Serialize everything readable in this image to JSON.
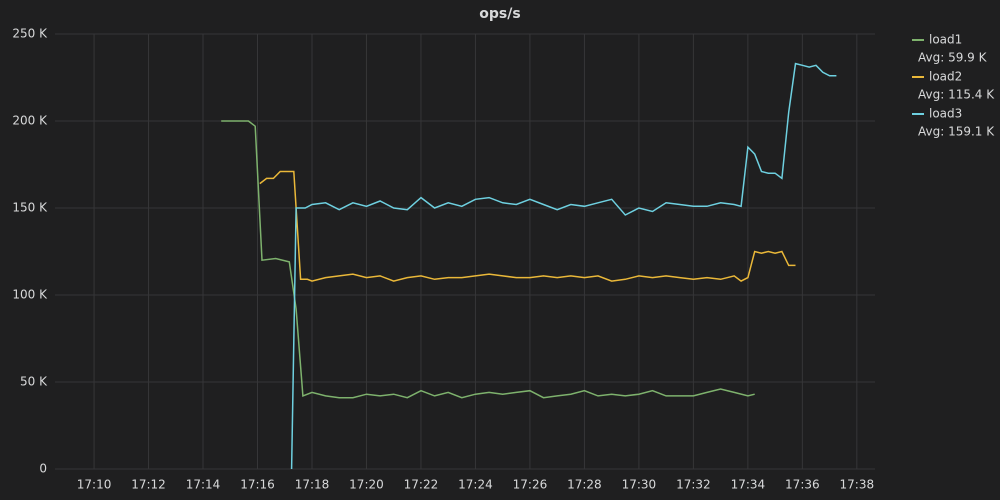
{
  "chart_data": {
    "type": "line",
    "title": "ops/s",
    "xlim": [
      "17:08:34",
      "17:38:40"
    ],
    "xticks": [
      "17:10",
      "17:12",
      "17:14",
      "17:16",
      "17:18",
      "17:20",
      "17:22",
      "17:24",
      "17:26",
      "17:28",
      "17:30",
      "17:32",
      "17:34",
      "17:36",
      "17:38"
    ],
    "ylim": [
      0,
      250000
    ],
    "yticks": [
      0,
      {
        "value": 50000,
        "label": "50 K"
      },
      {
        "value": 100000,
        "label": "100 K"
      },
      {
        "value": 150000,
        "label": "150 K"
      },
      {
        "value": 200000,
        "label": "200 K"
      },
      {
        "value": 250000,
        "label": "250 K"
      }
    ],
    "grid": true,
    "legend": "right",
    "series": [
      {
        "name": "load1",
        "color": "#7eb26d",
        "avg_label": "Avg: 59.9 K",
        "x": [
          "17:14:40",
          "17:15:10",
          "17:15:40",
          "17:15:55",
          "17:16:10",
          "17:16:40",
          "17:17:10",
          "17:17:25",
          "17:17:40",
          "17:18:00",
          "17:18:30",
          "17:19:00",
          "17:19:30",
          "17:20:00",
          "17:20:30",
          "17:21:00",
          "17:21:30",
          "17:22:00",
          "17:22:30",
          "17:23:00",
          "17:23:30",
          "17:24:00",
          "17:24:30",
          "17:25:00",
          "17:25:30",
          "17:26:00",
          "17:26:30",
          "17:27:00",
          "17:27:30",
          "17:28:00",
          "17:28:30",
          "17:29:00",
          "17:29:30",
          "17:30:00",
          "17:30:30",
          "17:31:00",
          "17:31:30",
          "17:32:00",
          "17:32:30",
          "17:33:00",
          "17:33:30",
          "17:34:00",
          "17:34:15"
        ],
        "values": [
          200000,
          200000,
          200000,
          197000,
          120000,
          121000,
          119000,
          92000,
          42000,
          44000,
          42000,
          41000,
          41000,
          43000,
          42000,
          43000,
          41000,
          45000,
          42000,
          44000,
          41000,
          43000,
          44000,
          43000,
          44000,
          45000,
          41000,
          42000,
          43000,
          45000,
          42000,
          43000,
          42000,
          43000,
          45000,
          42000,
          42000,
          42000,
          44000,
          46000,
          44000,
          42000,
          43000
        ]
      },
      {
        "name": "load2",
        "color": "#eab839",
        "avg_label": "Avg: 115.4 K",
        "x": [
          "17:16:05",
          "17:16:20",
          "17:16:35",
          "17:16:50",
          "17:17:20",
          "17:17:35",
          "17:17:50",
          "17:18:00",
          "17:18:30",
          "17:19:00",
          "17:19:30",
          "17:20:00",
          "17:20:30",
          "17:21:00",
          "17:21:30",
          "17:22:00",
          "17:22:30",
          "17:23:00",
          "17:23:30",
          "17:24:00",
          "17:24:30",
          "17:25:00",
          "17:25:30",
          "17:26:00",
          "17:26:30",
          "17:27:00",
          "17:27:30",
          "17:28:00",
          "17:28:30",
          "17:29:00",
          "17:29:30",
          "17:30:00",
          "17:30:30",
          "17:31:00",
          "17:31:30",
          "17:32:00",
          "17:32:30",
          "17:33:00",
          "17:33:30",
          "17:33:45",
          "17:34:00",
          "17:34:15",
          "17:34:30",
          "17:34:45",
          "17:35:00",
          "17:35:15",
          "17:35:30",
          "17:35:45"
        ],
        "values": [
          164000,
          167000,
          167000,
          171000,
          171000,
          109000,
          109000,
          108000,
          110000,
          111000,
          112000,
          110000,
          111000,
          108000,
          110000,
          111000,
          109000,
          110000,
          110000,
          111000,
          112000,
          111000,
          110000,
          110000,
          111000,
          110000,
          111000,
          110000,
          111000,
          108000,
          109000,
          111000,
          110000,
          111000,
          110000,
          109000,
          110000,
          109000,
          111000,
          108000,
          110000,
          125000,
          124000,
          125000,
          124000,
          125000,
          117000,
          117000
        ]
      },
      {
        "name": "load3",
        "color": "#6ed0e0",
        "avg_label": "Avg: 159.1 K",
        "x": [
          "17:17:15",
          "17:17:25",
          "17:17:45",
          "17:18:00",
          "17:18:30",
          "17:19:00",
          "17:19:30",
          "17:20:00",
          "17:20:30",
          "17:21:00",
          "17:21:30",
          "17:22:00",
          "17:22:30",
          "17:23:00",
          "17:23:30",
          "17:24:00",
          "17:24:30",
          "17:25:00",
          "17:25:30",
          "17:26:00",
          "17:26:30",
          "17:27:00",
          "17:27:30",
          "17:28:00",
          "17:28:30",
          "17:29:00",
          "17:29:30",
          "17:30:00",
          "17:30:30",
          "17:31:00",
          "17:31:30",
          "17:32:00",
          "17:32:30",
          "17:33:00",
          "17:33:30",
          "17:33:45",
          "17:34:00",
          "17:34:15",
          "17:34:30",
          "17:34:45",
          "17:35:00",
          "17:35:15",
          "17:35:30",
          "17:35:45",
          "17:36:00",
          "17:36:15",
          "17:36:30",
          "17:36:45",
          "17:37:00",
          "17:37:15"
        ],
        "values": [
          0,
          150000,
          150000,
          152000,
          153000,
          149000,
          153000,
          151000,
          154000,
          150000,
          149000,
          156000,
          150000,
          153000,
          151000,
          155000,
          156000,
          153000,
          152000,
          155000,
          152000,
          149000,
          152000,
          151000,
          153000,
          155000,
          146000,
          150000,
          148000,
          153000,
          152000,
          151000,
          151000,
          153000,
          152000,
          151000,
          185000,
          181000,
          171000,
          170000,
          170000,
          167000,
          205000,
          233000,
          232000,
          231000,
          232000,
          228000,
          226000,
          226000
        ]
      }
    ]
  }
}
